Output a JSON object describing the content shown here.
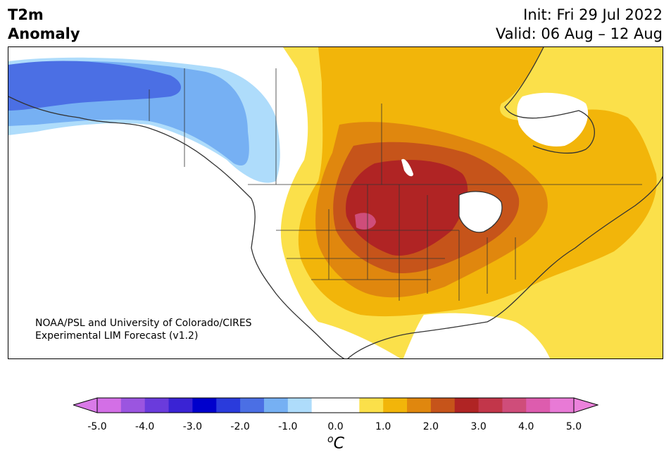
{
  "header": {
    "title_line1": "T2m",
    "title_line2": "Anomaly",
    "init": "Init: Fri 29 Jul 2022",
    "valid": "Valid: 06 Aug – 12 Aug"
  },
  "credit": {
    "line1": "NOAA/PSL and University of Colorado/CIRES",
    "line2": "Experimental LIM Forecast (v1.2)"
  },
  "colorbar": {
    "unit_base": "C",
    "unit_sup": "o",
    "tick_labels": [
      "-5.0",
      "-4.0",
      "-3.0",
      "-2.0",
      "-1.0",
      "0.0",
      "1.0",
      "2.0",
      "3.0",
      "4.0",
      "5.0"
    ],
    "colors": [
      "#d36fe6",
      "#9b55e0",
      "#6a3bdc",
      "#3a23d4",
      "#0000cc",
      "#2a3bdc",
      "#4b6fe4",
      "#76b0f3",
      "#aedcfb",
      "#ffffff",
      "#ffffff",
      "#fbe04a",
      "#f2b50a",
      "#e0870e",
      "#c6541a",
      "#b02424",
      "#c2364a",
      "#cf4d7a",
      "#dd5cae",
      "#e87ad6"
    ],
    "under_color": "#d97ae8",
    "over_color": "#ec82dc"
  }
}
